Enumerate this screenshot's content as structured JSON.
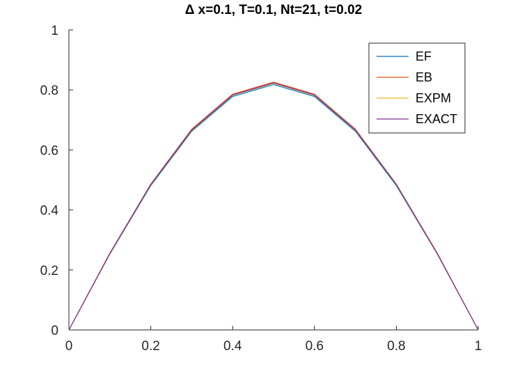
{
  "chart_data": {
    "type": "line",
    "title": "Δ x=0.1, T=0.1, Nt=21, t=0.02",
    "xlabel": "",
    "ylabel": "",
    "xlim": [
      0,
      1
    ],
    "ylim": [
      0,
      1
    ],
    "grid": false,
    "legend_position": "top-right",
    "x": [
      0,
      0.1,
      0.2,
      0.3,
      0.4,
      0.5,
      0.6,
      0.7,
      0.8,
      0.9,
      1.0
    ],
    "series": [
      {
        "name": "EF",
        "color": "#0072BD",
        "values": [
          0,
          0.253,
          0.481,
          0.662,
          0.778,
          0.818,
          0.778,
          0.662,
          0.481,
          0.253,
          0
        ]
      },
      {
        "name": "EB",
        "color": "#D95319",
        "values": [
          0,
          0.256,
          0.486,
          0.669,
          0.786,
          0.826,
          0.786,
          0.669,
          0.486,
          0.256,
          0
        ]
      },
      {
        "name": "EXPM",
        "color": "#EDB120",
        "values": [
          0,
          0.254,
          0.484,
          0.665,
          0.782,
          0.822,
          0.782,
          0.665,
          0.484,
          0.254,
          0
        ]
      },
      {
        "name": "EXACT",
        "color": "#7E2F8E",
        "values": [
          0,
          0.2545,
          0.4845,
          0.6665,
          0.783,
          0.8235,
          0.783,
          0.6665,
          0.4845,
          0.2545,
          0
        ]
      }
    ],
    "xticks": [
      "0",
      "0.2",
      "0.4",
      "0.6",
      "0.8",
      "1"
    ],
    "yticks": [
      "0",
      "0.2",
      "0.4",
      "0.6",
      "0.8",
      "1"
    ]
  }
}
